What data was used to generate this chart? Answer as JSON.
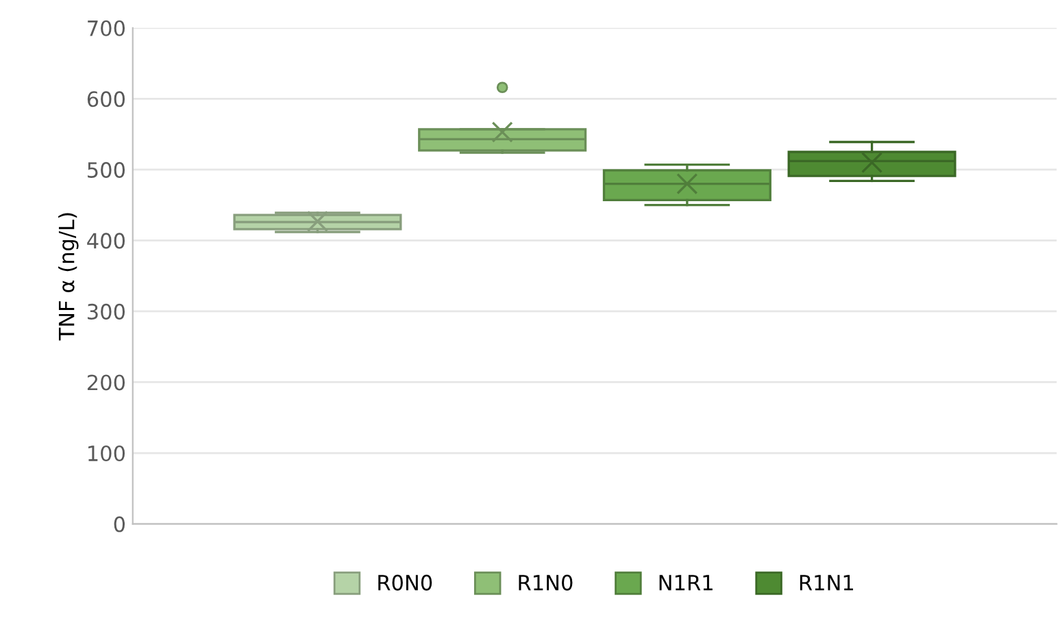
{
  "chart_data": {
    "type": "box",
    "ylabel": "TNF α (ng/L)",
    "categories": [
      null
    ],
    "ylim": [
      0,
      700
    ],
    "yticks": [
      0,
      100,
      200,
      300,
      400,
      500,
      600,
      700
    ],
    "grid": "y",
    "legend": "bottom",
    "series": [
      {
        "name": "R0N0",
        "color": "#b5d3a7",
        "boxes": [
          {
            "low": 412,
            "q1": 416,
            "median": 426,
            "q3": 436,
            "high": 439,
            "mean": 427
          }
        ]
      },
      {
        "name": "R1N0",
        "color": "#8fbf76",
        "boxes": [
          {
            "low": 524,
            "q1": 527,
            "median": 543,
            "q3": 557,
            "high": 557,
            "mean": 553,
            "outliers": [
              616
            ]
          }
        ]
      },
      {
        "name": "N1R1",
        "color": "#6aa84f",
        "boxes": [
          {
            "low": 450,
            "q1": 457,
            "median": 480,
            "q3": 499,
            "high": 507,
            "mean": 480
          }
        ]
      },
      {
        "name": "R1N1",
        "color": "#4e8a32",
        "boxes": [
          {
            "low": 484,
            "q1": 491,
            "median": 512,
            "q3": 525,
            "high": 539,
            "mean": 510
          }
        ]
      }
    ]
  }
}
